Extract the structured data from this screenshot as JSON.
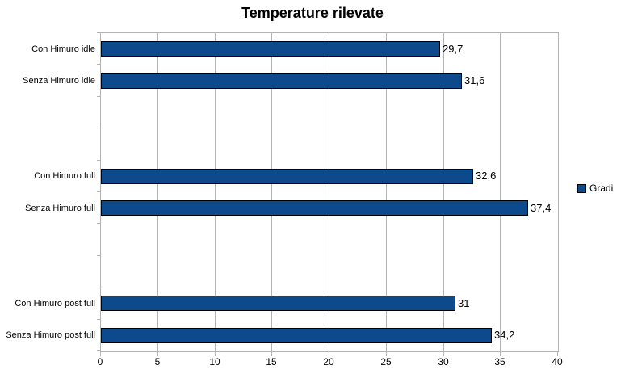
{
  "title": "Temperature rilevate",
  "legend": {
    "label": "Gradi"
  },
  "colors": {
    "bar_fill": "#0d4a8b",
    "bar_border": "#000000",
    "grid": "#b3b3b3",
    "axis": "#b3b3b3",
    "text": "#000000",
    "background": "#ffffff"
  },
  "chart_data": {
    "type": "bar",
    "orientation": "horizontal",
    "title": "Temperature rilevate",
    "series_name": "Gradi",
    "legend_entries": [
      "Gradi"
    ],
    "legend_position": "right",
    "xlabel": "",
    "ylabel": "",
    "xlim": [
      0,
      40
    ],
    "x_tick_step": 5,
    "x_tick_labels": [
      "0",
      "5",
      "10",
      "15",
      "20",
      "25",
      "30",
      "35",
      "40"
    ],
    "grid": "vertical-only",
    "rows": [
      {
        "label": "Con Himuro idle",
        "value": 29.7,
        "value_label": "29,7"
      },
      {
        "label": "Senza Himuro idle",
        "value": 31.6,
        "value_label": "31,6"
      },
      {
        "label": "",
        "value": null,
        "value_label": ""
      },
      {
        "label": "",
        "value": null,
        "value_label": ""
      },
      {
        "label": "Con Himuro full",
        "value": 32.6,
        "value_label": "32,6"
      },
      {
        "label": "Senza Himuro full",
        "value": 37.4,
        "value_label": "37,4"
      },
      {
        "label": "",
        "value": null,
        "value_label": ""
      },
      {
        "label": "",
        "value": null,
        "value_label": ""
      },
      {
        "label": "Con Himuro post full",
        "value": 31,
        "value_label": "31"
      },
      {
        "label": "Senza Himuro post full",
        "value": 34.2,
        "value_label": "34,2"
      }
    ]
  }
}
